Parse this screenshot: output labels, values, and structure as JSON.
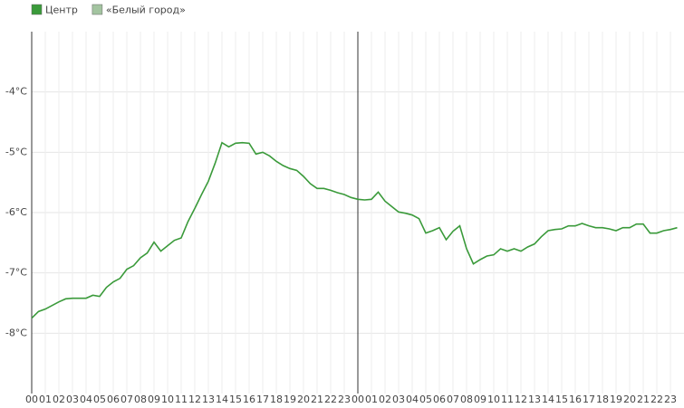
{
  "chart_data": {
    "type": "line",
    "x": [
      0,
      0.5,
      1,
      1.5,
      2,
      2.5,
      3,
      4,
      4.5,
      5,
      5.5,
      6,
      6.5,
      7,
      7.5,
      8,
      8.5,
      9,
      9.5,
      10,
      10.5,
      11,
      11.5,
      12,
      12.5,
      13,
      13.5,
      14,
      14.5,
      15,
      15.5,
      16,
      16.5,
      17,
      17.5,
      18,
      18.5,
      19,
      19.5,
      20,
      20.5,
      21,
      21.5,
      22,
      22.5,
      23,
      23.5,
      24,
      24.5,
      25,
      25.5,
      26,
      26.5,
      27,
      27.5,
      28,
      28.5,
      29,
      29.5,
      30,
      30.5,
      31,
      31.5,
      32,
      32.5,
      33,
      33.5,
      34,
      34.5,
      35,
      35.5,
      36,
      36.5,
      37,
      37.5,
      38,
      38.5,
      39,
      39.5,
      40,
      40.5,
      41,
      41.5,
      42,
      42.5,
      43,
      43.5,
      44,
      44.5,
      45,
      45.5,
      46,
      46.5,
      47,
      47.5
    ],
    "series": [
      {
        "name": "Центр",
        "color": "#3a9a3a",
        "values": [
          -7.75,
          -7.64,
          -7.6,
          -7.54,
          -7.48,
          -7.43,
          -7.42,
          -7.42,
          -7.37,
          -7.39,
          -7.24,
          -7.15,
          -7.09,
          -6.94,
          -6.88,
          -6.75,
          -6.67,
          -6.49,
          -6.64,
          -6.55,
          -6.46,
          -6.42,
          -6.15,
          -5.93,
          -5.7,
          -5.48,
          -5.18,
          -4.84,
          -4.91,
          -4.85,
          -4.84,
          -4.85,
          -5.03,
          -5.0,
          -5.06,
          -5.15,
          -5.22,
          -5.27,
          -5.3,
          -5.4,
          -5.52,
          -5.6,
          -5.6,
          -5.63,
          -5.67,
          -5.7,
          -5.75,
          -5.78,
          -5.79,
          -5.78,
          -5.66,
          -5.81,
          -5.9,
          -5.99,
          -6.01,
          -6.04,
          -6.1,
          -6.34,
          -6.3,
          -6.25,
          -6.45,
          -6.31,
          -6.22,
          -6.6,
          -6.85,
          -6.78,
          -6.72,
          -6.7,
          -6.6,
          -6.64,
          -6.6,
          -6.64,
          -6.57,
          -6.52,
          -6.4,
          -6.3,
          -6.28,
          -6.27,
          -6.22,
          -6.22,
          -6.18,
          -6.22,
          -6.25,
          -6.25,
          -6.27,
          -6.3,
          -6.25,
          -6.25,
          -6.19,
          -6.19,
          -6.34,
          -6.34,
          -6.3,
          -6.28,
          -6.25
        ]
      },
      {
        "name": "«Белый город»",
        "color": "#a3c4a0",
        "values": [
          null,
          null,
          null,
          null,
          null,
          null,
          null,
          null,
          null,
          null,
          null,
          null,
          null,
          null,
          null,
          null,
          null,
          null,
          null,
          null,
          null,
          null,
          null,
          null,
          null,
          null,
          null,
          null,
          null,
          null,
          null,
          null,
          null,
          null,
          null,
          null,
          null,
          null,
          null,
          null,
          null,
          null,
          null,
          null,
          null,
          null,
          null,
          null,
          null,
          null,
          null,
          null,
          null,
          null,
          null,
          null,
          null,
          null,
          null,
          null,
          null,
          null,
          null,
          null,
          null,
          null,
          null,
          null,
          null,
          null,
          null,
          null,
          null,
          null,
          null,
          null,
          null,
          null,
          null,
          null,
          null,
          null,
          null,
          null,
          null,
          null,
          null,
          null,
          null,
          null,
          null,
          null,
          null,
          null,
          null
        ]
      }
    ],
    "xlim": [
      0,
      48
    ],
    "ylim": [
      -9,
      -3
    ],
    "yticks": [
      {
        "value": -4,
        "label": "-4°C"
      },
      {
        "value": -5,
        "label": "-5°C"
      },
      {
        "value": -6,
        "label": "-6°C"
      },
      {
        "value": -7,
        "label": "-7°C"
      },
      {
        "value": -8,
        "label": "-8°C"
      }
    ],
    "xticks": [
      {
        "value": 0,
        "label": "00"
      },
      {
        "value": 1,
        "label": "01"
      },
      {
        "value": 2,
        "label": "02"
      },
      {
        "value": 3,
        "label": "03"
      },
      {
        "value": 4,
        "label": "04"
      },
      {
        "value": 5,
        "label": "05"
      },
      {
        "value": 6,
        "label": "06"
      },
      {
        "value": 7,
        "label": "07"
      },
      {
        "value": 8,
        "label": "08"
      },
      {
        "value": 9,
        "label": "09"
      },
      {
        "value": 10,
        "label": "10"
      },
      {
        "value": 11,
        "label": "11"
      },
      {
        "value": 12,
        "label": "12"
      },
      {
        "value": 13,
        "label": "13"
      },
      {
        "value": 14,
        "label": "14"
      },
      {
        "value": 15,
        "label": "15"
      },
      {
        "value": 16,
        "label": "16"
      },
      {
        "value": 17,
        "label": "17"
      },
      {
        "value": 18,
        "label": "18"
      },
      {
        "value": 19,
        "label": "19"
      },
      {
        "value": 20,
        "label": "20"
      },
      {
        "value": 21,
        "label": "21"
      },
      {
        "value": 22,
        "label": "22"
      },
      {
        "value": 23,
        "label": "23"
      },
      {
        "value": 24,
        "label": "00"
      },
      {
        "value": 25,
        "label": "01"
      },
      {
        "value": 26,
        "label": "02"
      },
      {
        "value": 27,
        "label": "03"
      },
      {
        "value": 28,
        "label": "04"
      },
      {
        "value": 29,
        "label": "05"
      },
      {
        "value": 30,
        "label": "06"
      },
      {
        "value": 31,
        "label": "07"
      },
      {
        "value": 32,
        "label": "08"
      },
      {
        "value": 33,
        "label": "09"
      },
      {
        "value": 34,
        "label": "10"
      },
      {
        "value": 35,
        "label": "11"
      },
      {
        "value": 36,
        "label": "12"
      },
      {
        "value": 37,
        "label": "13"
      },
      {
        "value": 38,
        "label": "14"
      },
      {
        "value": 39,
        "label": "15"
      },
      {
        "value": 40,
        "label": "16"
      },
      {
        "value": 41,
        "label": "17"
      },
      {
        "value": 42,
        "label": "18"
      },
      {
        "value": 43,
        "label": "19"
      },
      {
        "value": 44,
        "label": "20"
      },
      {
        "value": 45,
        "label": "21"
      },
      {
        "value": 46,
        "label": "22"
      },
      {
        "value": 47,
        "label": "23"
      }
    ],
    "grid": true
  }
}
